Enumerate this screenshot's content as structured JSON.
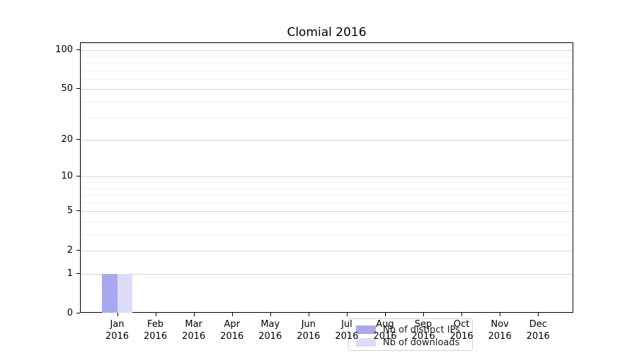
{
  "title": "Clomial 2016",
  "colors": {
    "distinct_ips": "#a8a8f0",
    "downloads": "#dcdcf6",
    "grid_major": "#d5d5d5",
    "grid_minor": "#f0f0f0",
    "axis": "#000000",
    "legend_border": "#d2d2d2"
  },
  "legend": {
    "items": [
      {
        "label": "Nb of distinct IPs",
        "color": "#a8a8f0"
      },
      {
        "label": "Nb of downloads",
        "color": "#dcdcf6"
      }
    ]
  },
  "chart_data": {
    "type": "bar",
    "title": "Clomial 2016",
    "categories": [
      [
        "Jan",
        "2016"
      ],
      [
        "Feb",
        "2016"
      ],
      [
        "Mar",
        "2016"
      ],
      [
        "Apr",
        "2016"
      ],
      [
        "May",
        "2016"
      ],
      [
        "Jun",
        "2016"
      ],
      [
        "Jul",
        "2016"
      ],
      [
        "Aug",
        "2016"
      ],
      [
        "Sep",
        "2016"
      ],
      [
        "Oct",
        "2016"
      ],
      [
        "Nov",
        "2016"
      ],
      [
        "Dec",
        "2016"
      ]
    ],
    "series": [
      {
        "name": "Nb of distinct IPs",
        "color": "#a8a8f0",
        "values": [
          1,
          0,
          0,
          0,
          0,
          0,
          0,
          0,
          0,
          0,
          0,
          0
        ]
      },
      {
        "name": "Nb of downloads",
        "color": "#dcdcf6",
        "values": [
          1,
          0,
          0,
          0,
          0,
          0,
          0,
          0,
          0,
          0,
          0,
          0
        ]
      }
    ],
    "xlabel": "",
    "ylabel": "",
    "y_scale": "log1p",
    "ylim": [
      0,
      113.6
    ],
    "y_ticks": [
      0,
      1,
      2,
      5,
      10,
      20,
      50,
      100
    ],
    "y_minor_ticks": [
      3,
      4,
      6,
      7,
      8,
      9,
      30,
      40,
      60,
      70,
      80,
      90
    ],
    "grid": "horizontal",
    "legend_position": "lower-center-inside"
  }
}
